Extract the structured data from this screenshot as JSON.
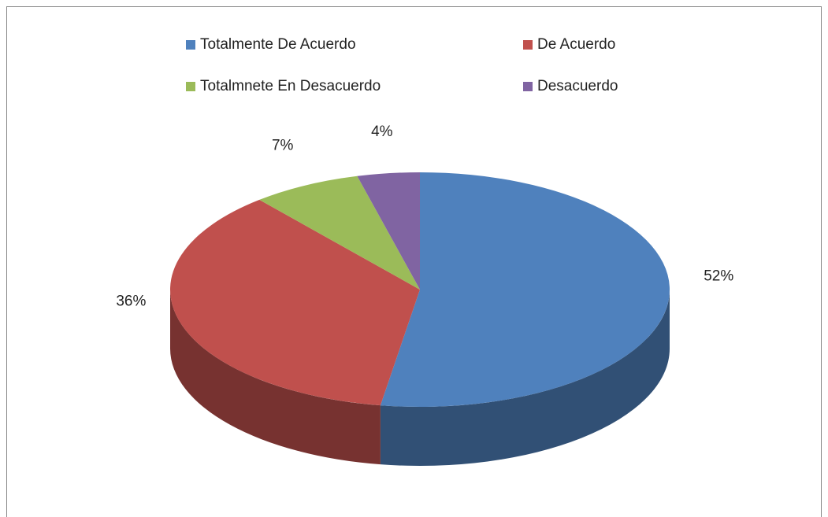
{
  "chart_data": {
    "type": "pie",
    "categories": [
      "Totalmente De Acuerdo",
      "De Acuerdo",
      "Totalmnete En Desacuerdo",
      "Desacuerdo"
    ],
    "values": [
      52,
      36,
      7,
      4
    ],
    "value_labels": [
      "52%",
      "36%",
      "7%",
      "4%"
    ],
    "colors": [
      "#4f81bd",
      "#c0504d",
      "#9bbb59",
      "#8064a2"
    ],
    "legend": "top"
  }
}
